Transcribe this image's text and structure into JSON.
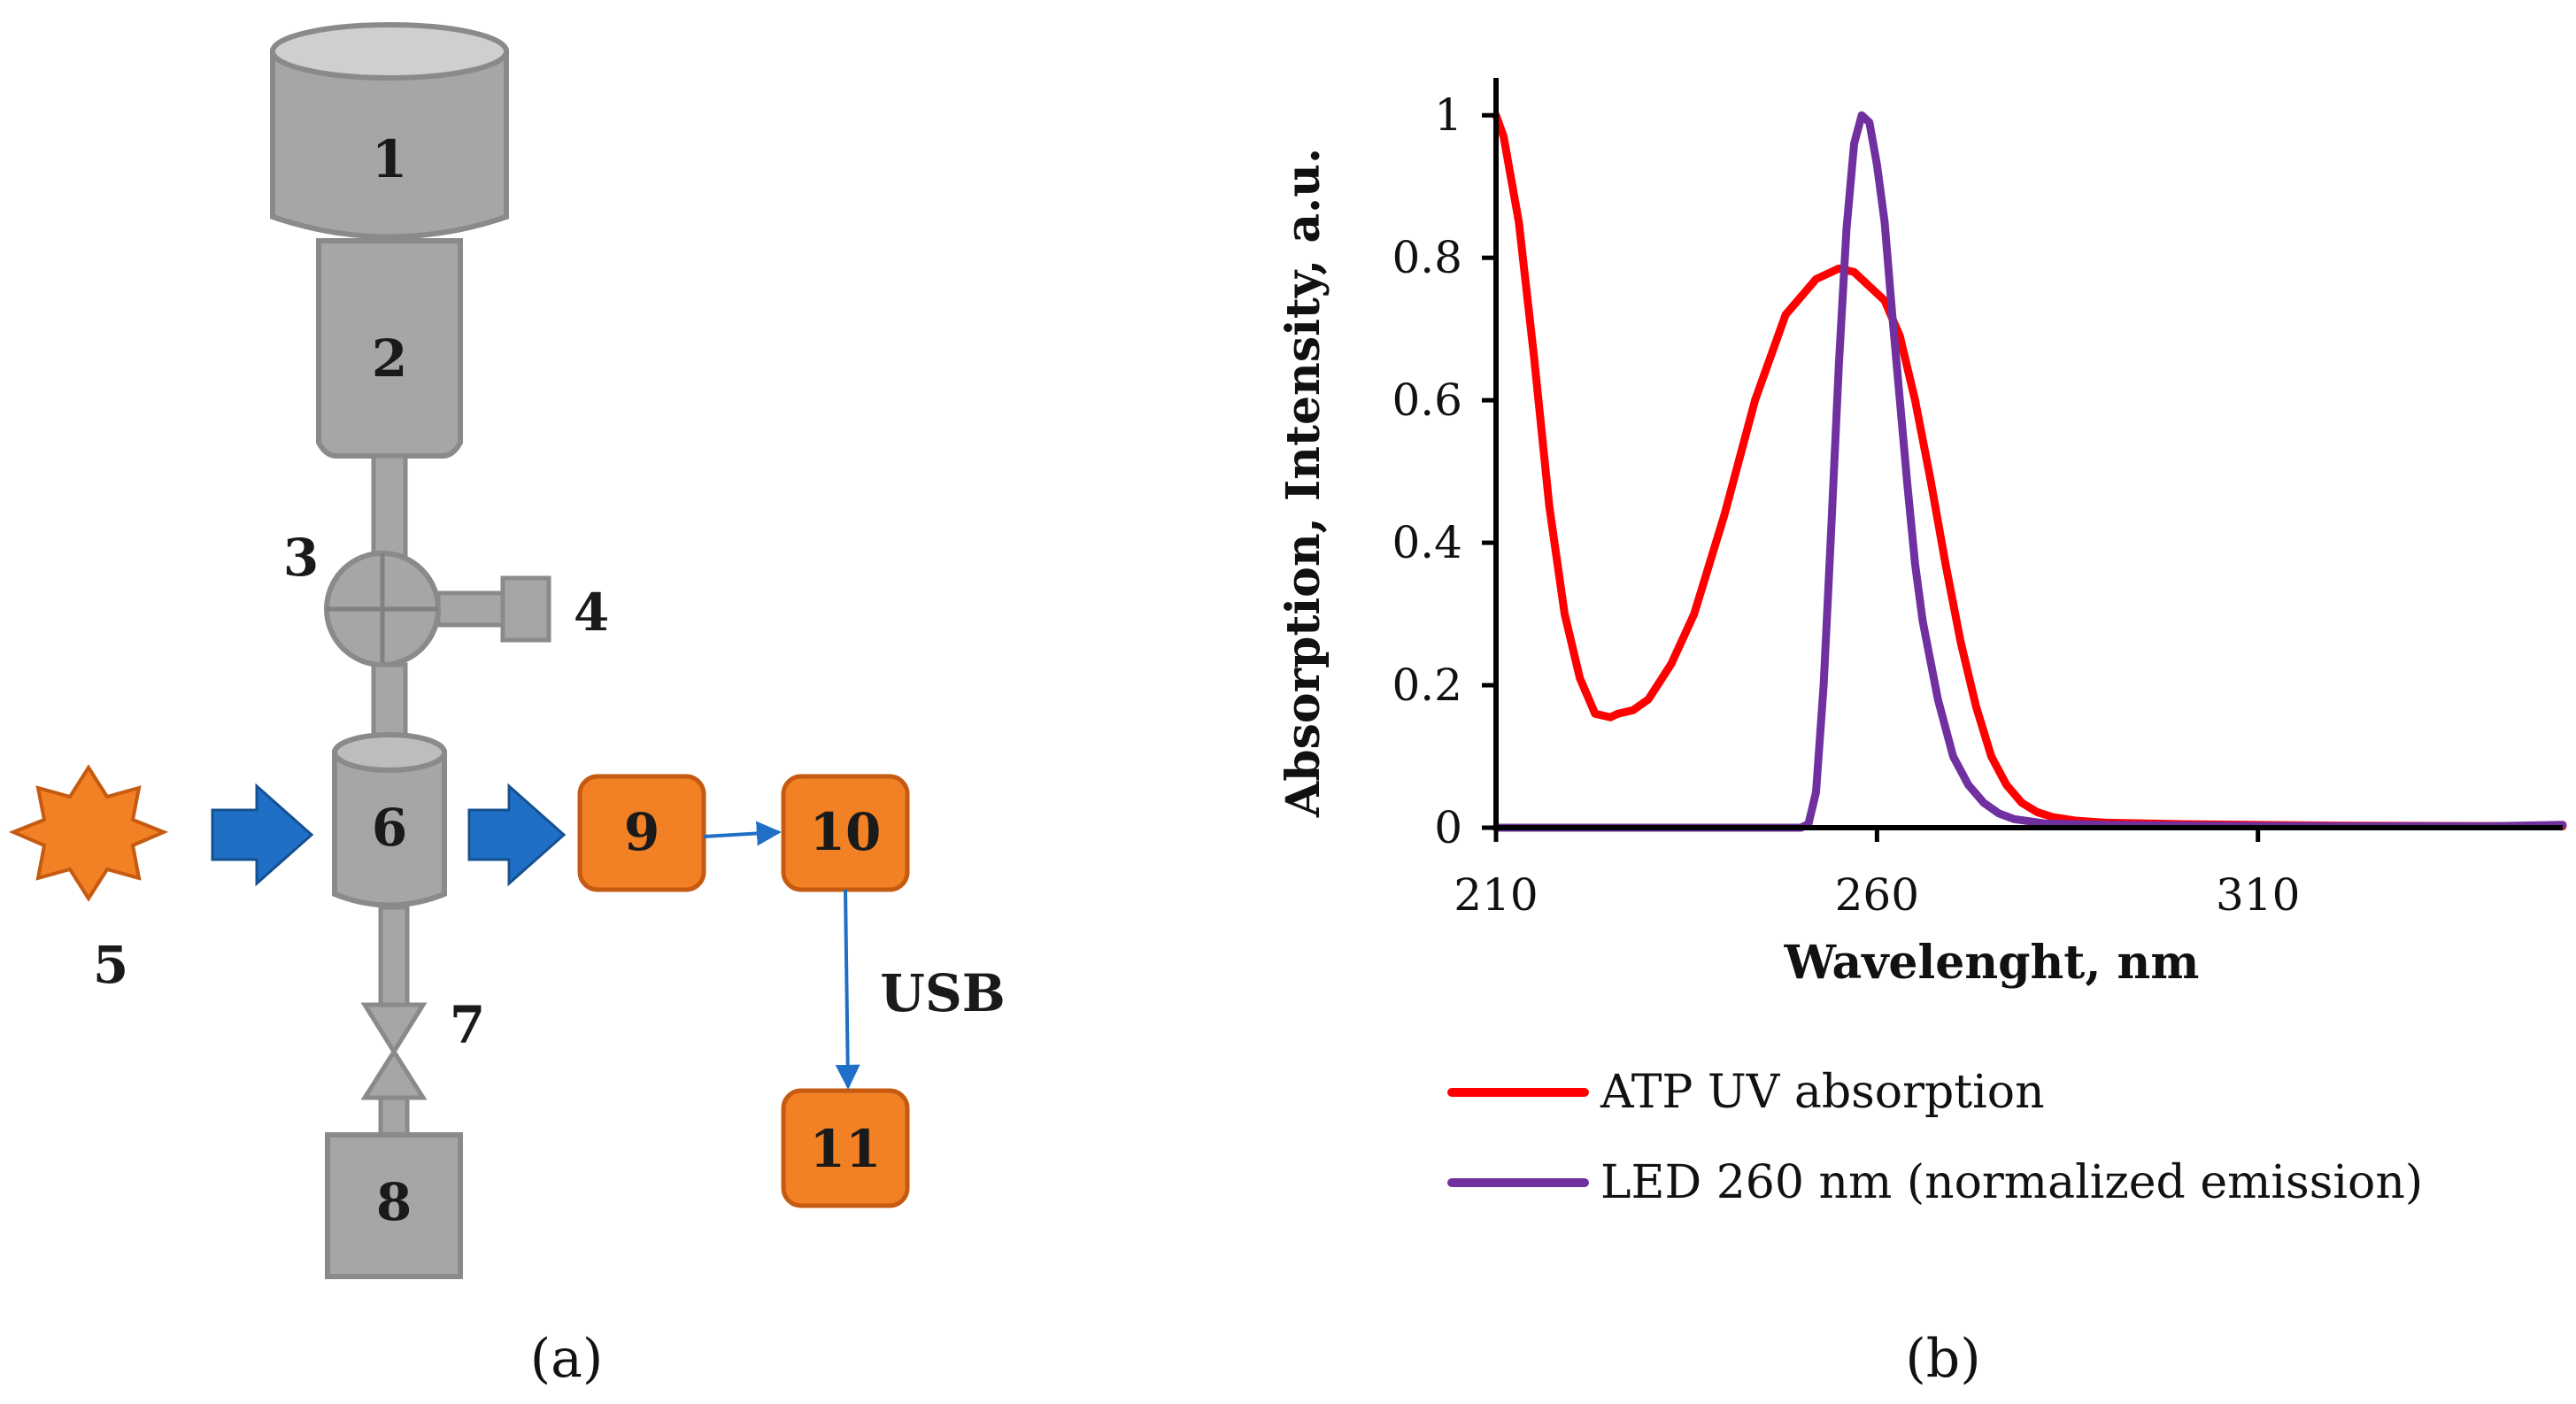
{
  "panel_a": {
    "caption": "(a)",
    "components": {
      "c1": "1",
      "c2": "2",
      "c3": "3",
      "c4": "4",
      "c5": "5",
      "c6": "6",
      "c7": "7",
      "c8": "8",
      "c9": "9",
      "c10": "10",
      "c11": "11"
    },
    "usb_label": "USB",
    "colors": {
      "gray": "#a6a6a6",
      "gray_stroke": "#8a8a8a",
      "orange": "#f28024",
      "orange_stroke": "#c55a11",
      "blue": "#1f6fc6"
    }
  },
  "panel_b": {
    "caption": "(b)"
  },
  "chart_data": {
    "type": "line",
    "title": "",
    "xlabel": "Wavelenght, nm",
    "ylabel": "Absorption, Intensity, a.u.",
    "xlim": [
      210,
      350
    ],
    "ylim": [
      0,
      1.05
    ],
    "xticks": [
      210,
      260,
      310
    ],
    "xtick_labels": [
      "210",
      "260",
      "310"
    ],
    "yticks": [
      0,
      0.2,
      0.4,
      0.6,
      0.8,
      1
    ],
    "ytick_labels": [
      "0",
      "0.2",
      "0.4",
      "0.6",
      "0.8",
      "1"
    ],
    "legend_position": "bottom",
    "series": [
      {
        "name": "ATP UV absorption",
        "color": "#ff0000",
        "x": [
          210,
          211,
          213,
          215,
          217,
          219,
          221,
          223,
          225,
          226,
          228,
          230,
          233,
          236,
          240,
          244,
          248,
          252,
          255,
          257,
          259,
          261,
          263,
          265,
          267,
          269,
          271,
          273,
          275,
          277,
          279,
          281,
          283,
          286,
          290,
          300,
          320,
          350
        ],
        "values": [
          1.0,
          0.97,
          0.85,
          0.66,
          0.45,
          0.3,
          0.21,
          0.16,
          0.155,
          0.16,
          0.165,
          0.18,
          0.23,
          0.3,
          0.44,
          0.6,
          0.72,
          0.77,
          0.785,
          0.78,
          0.76,
          0.74,
          0.69,
          0.6,
          0.49,
          0.37,
          0.26,
          0.17,
          0.1,
          0.06,
          0.035,
          0.022,
          0.015,
          0.01,
          0.007,
          0.005,
          0.003,
          0.002
        ]
      },
      {
        "name": "LED 260 nm (normalized emission)",
        "color": "#7030a0",
        "x": [
          210,
          230,
          250,
          251,
          252,
          253,
          254,
          255,
          256,
          257,
          258,
          259,
          260,
          261,
          262,
          263,
          264,
          265,
          266,
          268,
          270,
          272,
          274,
          276,
          278,
          282,
          290,
          300,
          320,
          340,
          350
        ],
        "values": [
          0.0,
          0.0,
          0.0,
          0.005,
          0.05,
          0.2,
          0.42,
          0.65,
          0.84,
          0.96,
          1.0,
          0.99,
          0.93,
          0.85,
          0.72,
          0.6,
          0.48,
          0.37,
          0.29,
          0.18,
          0.1,
          0.06,
          0.035,
          0.02,
          0.012,
          0.006,
          0.004,
          0.003,
          0.002,
          0.002,
          0.004
        ]
      }
    ]
  }
}
